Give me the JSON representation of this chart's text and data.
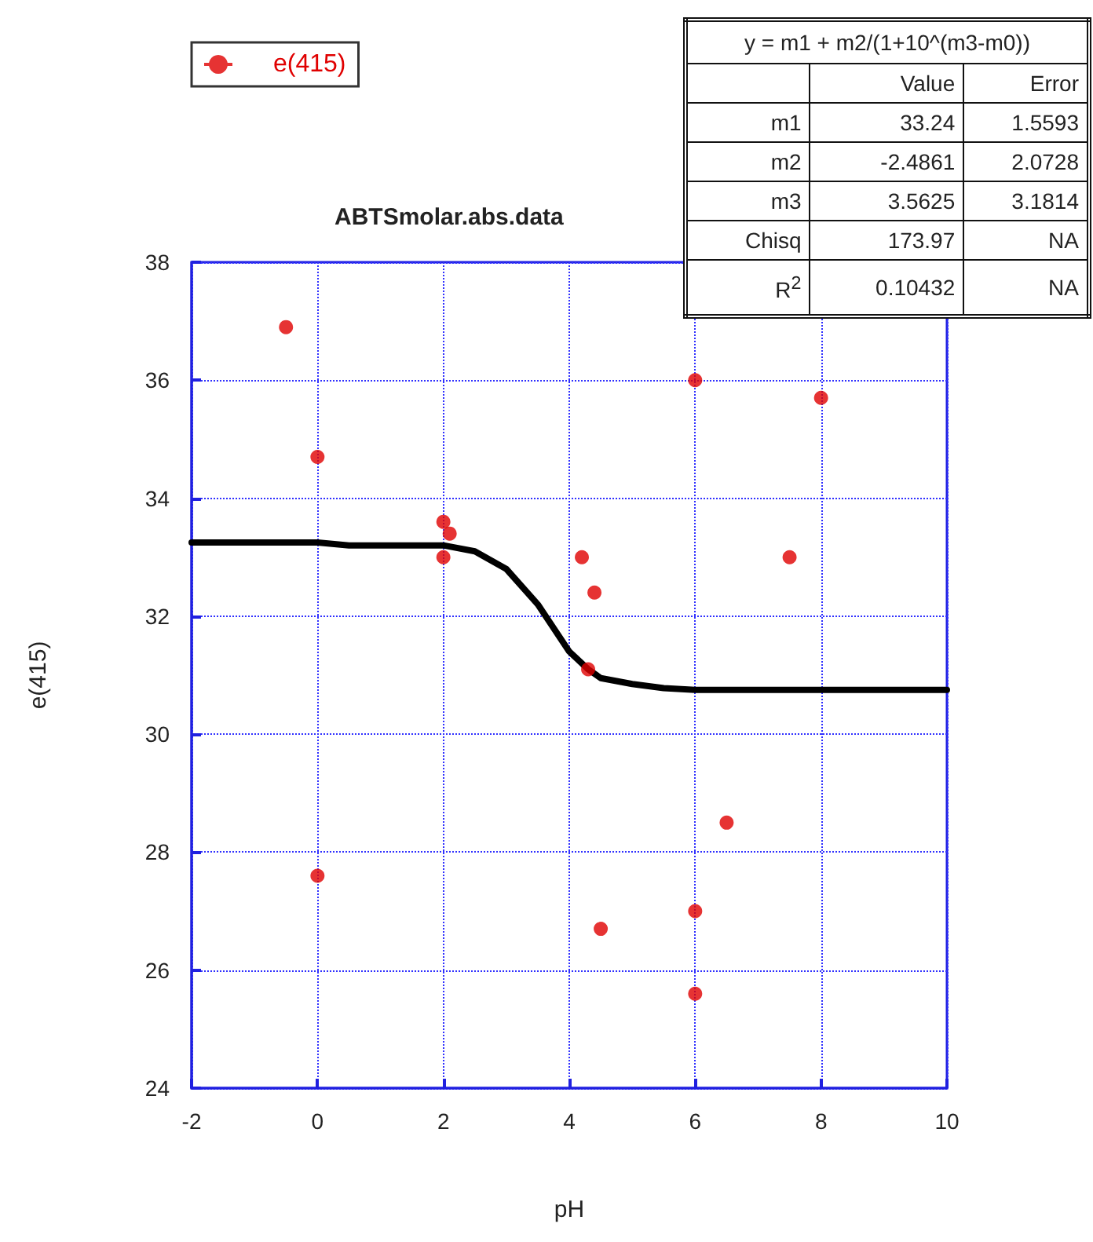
{
  "chart_data": {
    "type": "scatter",
    "title": "ABTSmolar.abs.data",
    "xlabel": "pH",
    "ylabel": "e(415)",
    "xlim": [
      -2,
      10
    ],
    "xticks": [
      -2,
      0,
      2,
      4,
      6,
      8,
      10
    ],
    "ylim": [
      24,
      38
    ],
    "yticks": [
      24,
      26,
      28,
      30,
      32,
      34,
      36,
      38
    ],
    "grid": true,
    "legend": "top left",
    "marker": "circle",
    "annotations": [
      "y = m1 + m2/(1+10^(m3-m0))",
      "Value",
      "Error",
      "m1",
      "33.24",
      "1.5593",
      "m2",
      "-2.4861",
      "2.0728",
      "m3",
      "3.5625",
      "3.1814",
      "Chisq",
      "173.97",
      "NA",
      "R$^{2}$",
      "0.10432",
      "NA"
    ],
    "series": [
      {
        "name": "e(415)",
        "color": "#e00000",
        "x": [
          -0.5,
          0,
          0,
          2,
          2.1,
          2,
          4.2,
          4.4,
          4.3,
          6,
          8,
          7.5,
          4.5,
          6,
          6,
          6.5
        ],
        "values": [
          36.9,
          34.7,
          27.6,
          33.6,
          33.4,
          33.0,
          33.0,
          32.4,
          31.1,
          36.0,
          35.7,
          33.0,
          26.7,
          27.0,
          25.6,
          28.5
        ]
      },
      {
        "type": "line",
        "color": "#000000",
        "line_style": "solid",
        "marker": "none",
        "x": [
          -2,
          0,
          0.5,
          2,
          2.5,
          3,
          3.5,
          4,
          4.3,
          4.5,
          5,
          5.5,
          6,
          8,
          10
        ],
        "values": [
          33.25,
          33.25,
          33.2,
          33.2,
          33.1,
          32.8,
          32.2,
          31.4,
          31.1,
          30.95,
          30.85,
          30.78,
          30.75,
          30.75,
          30.75
        ]
      }
    ]
  }
}
